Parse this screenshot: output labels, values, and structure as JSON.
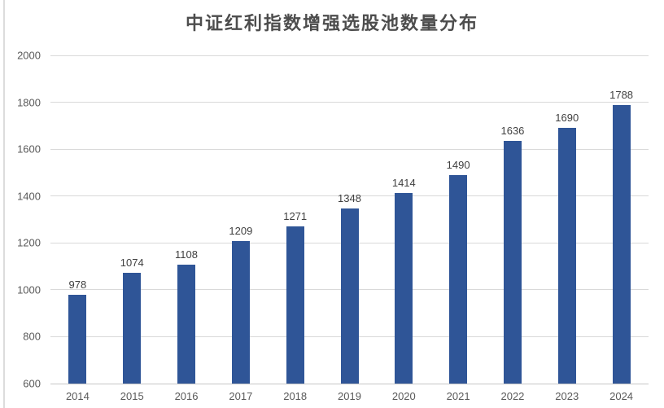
{
  "chart_data": {
    "type": "bar",
    "title": "中证红利指数增强选股池数量分布",
    "categories": [
      "2014",
      "2015",
      "2016",
      "2017",
      "2018",
      "2019",
      "2020",
      "2021",
      "2022",
      "2023",
      "2024"
    ],
    "values": [
      978,
      1074,
      1108,
      1209,
      1271,
      1348,
      1414,
      1490,
      1636,
      1690,
      1788
    ],
    "yticks": [
      600,
      800,
      1000,
      1200,
      1400,
      1600,
      1800,
      2000
    ],
    "ylim": [
      600,
      2000
    ],
    "xlabel": "",
    "ylabel": "",
    "grid": true,
    "legend_position": "none",
    "data_labels": true,
    "colors": {
      "bar": "#2F5597",
      "gridline": "#D9D9D9",
      "axis_line": "#C6C6C6",
      "tick_text": "#595959",
      "data_label_text": "#404040",
      "title_text": "#4D4D4D",
      "background": "#FFFFFF",
      "window_border": "#DCDCDC"
    }
  }
}
